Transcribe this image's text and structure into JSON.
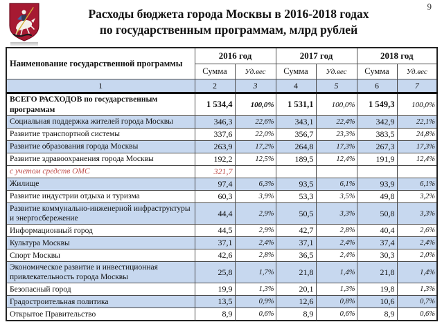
{
  "page": {
    "number": "9"
  },
  "header": {
    "title_line1": "Расходы бюджета города Москвы в 2016-2018 годах",
    "title_line2": "по государственным программам, млрд рублей",
    "logo": "moscow-coat-of-arms"
  },
  "table": {
    "name_header": "Наименование государственной программы",
    "year_groups": [
      {
        "label": "2016 год"
      },
      {
        "label": "2017 год"
      },
      {
        "label": "2018 год"
      }
    ],
    "sub_headers": {
      "sum": "Сумма",
      "share": "Уд.вес"
    },
    "index_row": [
      "1",
      "2",
      "3",
      "4",
      "5",
      "6",
      "7"
    ],
    "rows": [
      {
        "name": "ВСЕГО РАСХОДОВ по государственным программам",
        "style": "total",
        "v": [
          "1 534,4",
          "100,0%",
          "1 531,1",
          "100,0%",
          "1 549,3",
          "100,0%"
        ]
      },
      {
        "name": "Социальная поддержка жителей города Москвы",
        "style": "shaded",
        "v": [
          "346,3",
          "22,6%",
          "343,1",
          "22,4%",
          "342,9",
          "22,1%"
        ]
      },
      {
        "name": "Развитие транспортной системы",
        "style": "",
        "v": [
          "337,6",
          "22,0%",
          "356,7",
          "23,3%",
          "383,5",
          "24,8%"
        ]
      },
      {
        "name": "Развитие образования города Москвы",
        "style": "shaded",
        "v": [
          "263,9",
          "17,2%",
          "264,8",
          "17,3%",
          "267,3",
          "17,3%"
        ]
      },
      {
        "name": "Развитие здравоохранения города Москвы",
        "style": "",
        "v": [
          "192,2",
          "12,5%",
          "189,5",
          "12,4%",
          "191,9",
          "12,4%"
        ]
      },
      {
        "name": "с учетом средств ОМС",
        "style": "note",
        "v": [
          "321,7",
          "",
          "",
          "",
          "",
          ""
        ]
      },
      {
        "name": "Жилище",
        "style": "shaded",
        "v": [
          "97,4",
          "6,3%",
          "93,5",
          "6,1%",
          "93,9",
          "6,1%"
        ]
      },
      {
        "name": "Развитие индустрии отдыха и туризма",
        "style": "",
        "v": [
          "60,3",
          "3,9%",
          "53,3",
          "3,5%",
          "49,8",
          "3,2%"
        ]
      },
      {
        "name": "Развитие коммунально-инженерной инфраструктуры и энергосбережение",
        "style": "shaded",
        "v": [
          "44,4",
          "2,9%",
          "50,5",
          "3,3%",
          "50,8",
          "3,3%"
        ]
      },
      {
        "name": "Информационный город",
        "style": "",
        "v": [
          "44,5",
          "2,9%",
          "42,7",
          "2,8%",
          "40,4",
          "2,6%"
        ]
      },
      {
        "name": "Культура Москвы",
        "style": "shaded",
        "v": [
          "37,1",
          "2,4%",
          "37,1",
          "2,4%",
          "37,4",
          "2,4%"
        ]
      },
      {
        "name": "Спорт Москвы",
        "style": "",
        "v": [
          "42,6",
          "2,8%",
          "36,5",
          "2,4%",
          "30,3",
          "2,0%"
        ]
      },
      {
        "name": "Экономическое развитие и инвестиционная привлекательность города Москвы",
        "style": "shaded",
        "v": [
          "25,8",
          "1,7%",
          "21,8",
          "1,4%",
          "21,8",
          "1,4%"
        ]
      },
      {
        "name": "Безопасный город",
        "style": "",
        "v": [
          "19,9",
          "1,3%",
          "20,1",
          "1,3%",
          "19,8",
          "1,3%"
        ]
      },
      {
        "name": "Градостроительная политика",
        "style": "shaded",
        "v": [
          "13,5",
          "0,9%",
          "12,6",
          "0,8%",
          "10,6",
          "0,7%"
        ]
      },
      {
        "name": "Открытое Правительство",
        "style": "",
        "v": [
          "8,9",
          "0,6%",
          "8,9",
          "0,6%",
          "8,9",
          "0,6%"
        ]
      }
    ]
  },
  "colors": {
    "row_highlight": "#C7D8EF",
    "note_text": "#C0504D",
    "shield_red": "#A61A32",
    "thick_border": "#111111"
  }
}
